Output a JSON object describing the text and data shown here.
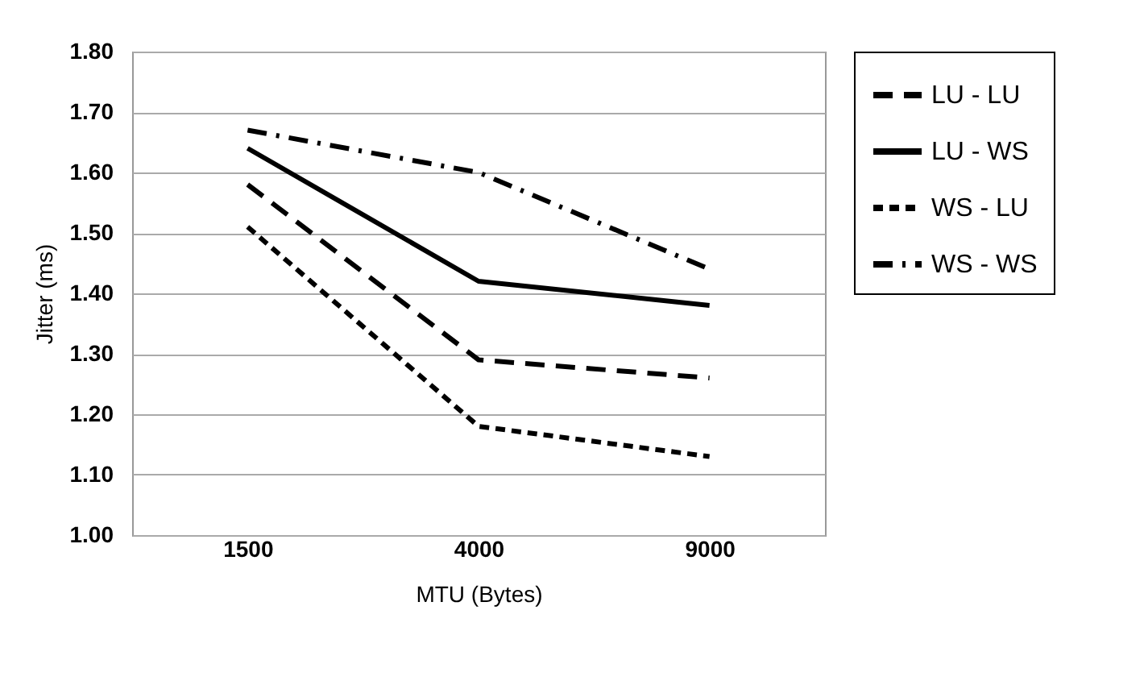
{
  "chart_data": {
    "type": "line",
    "xlabel": "MTU (Bytes)",
    "ylabel": "Jitter  (ms)",
    "categories": [
      "1500",
      "4000",
      "9000"
    ],
    "series": [
      {
        "name": "LU - LU",
        "color": "#000000",
        "line_style": "dashed",
        "values": [
          1.58,
          1.29,
          1.26
        ]
      },
      {
        "name": "LU - WS",
        "color": "#000000",
        "line_style": "solid",
        "values": [
          1.64,
          1.42,
          1.38
        ]
      },
      {
        "name": "WS - LU",
        "color": "#000000",
        "line_style": "dotted",
        "values": [
          1.51,
          1.18,
          1.13
        ]
      },
      {
        "name": "WS - WS",
        "color": "#000000",
        "line_style": "dashdot",
        "values": [
          1.67,
          1.6,
          1.44
        ]
      }
    ],
    "ylim": [
      1.0,
      1.8
    ],
    "yticks": [
      {
        "value": 1.0,
        "label": "1.00"
      },
      {
        "value": 1.1,
        "label": "1.10"
      },
      {
        "value": 1.2,
        "label": "1.20"
      },
      {
        "value": 1.3,
        "label": "1.30"
      },
      {
        "value": 1.4,
        "label": "1.40"
      },
      {
        "value": 1.5,
        "label": "1.50"
      },
      {
        "value": 1.6,
        "label": "1.60"
      },
      {
        "value": 1.7,
        "label": "1.70"
      },
      {
        "value": 1.8,
        "label": "1.80"
      }
    ],
    "grid": "y",
    "legend": "top right",
    "marker": "none"
  }
}
